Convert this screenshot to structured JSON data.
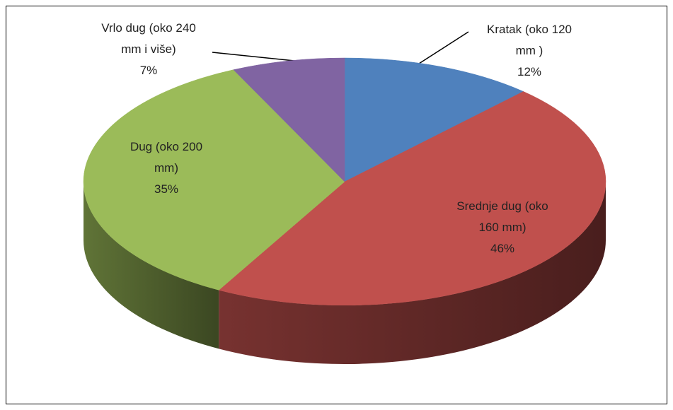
{
  "chart_data": {
    "type": "pie",
    "categories": [
      "Kratak (oko 120 mm )",
      "Srednje dug (oko 160 mm)",
      "Dug (oko 200 mm)",
      "Vrlo dug (oko 240 mm i više)"
    ],
    "values": [
      12,
      46,
      35,
      7
    ],
    "value_labels": [
      "12%",
      "46%",
      "35%",
      "7%"
    ],
    "colors": [
      "#4f81bd",
      "#c0504d",
      "#9bbb59",
      "#8064a2"
    ]
  }
}
